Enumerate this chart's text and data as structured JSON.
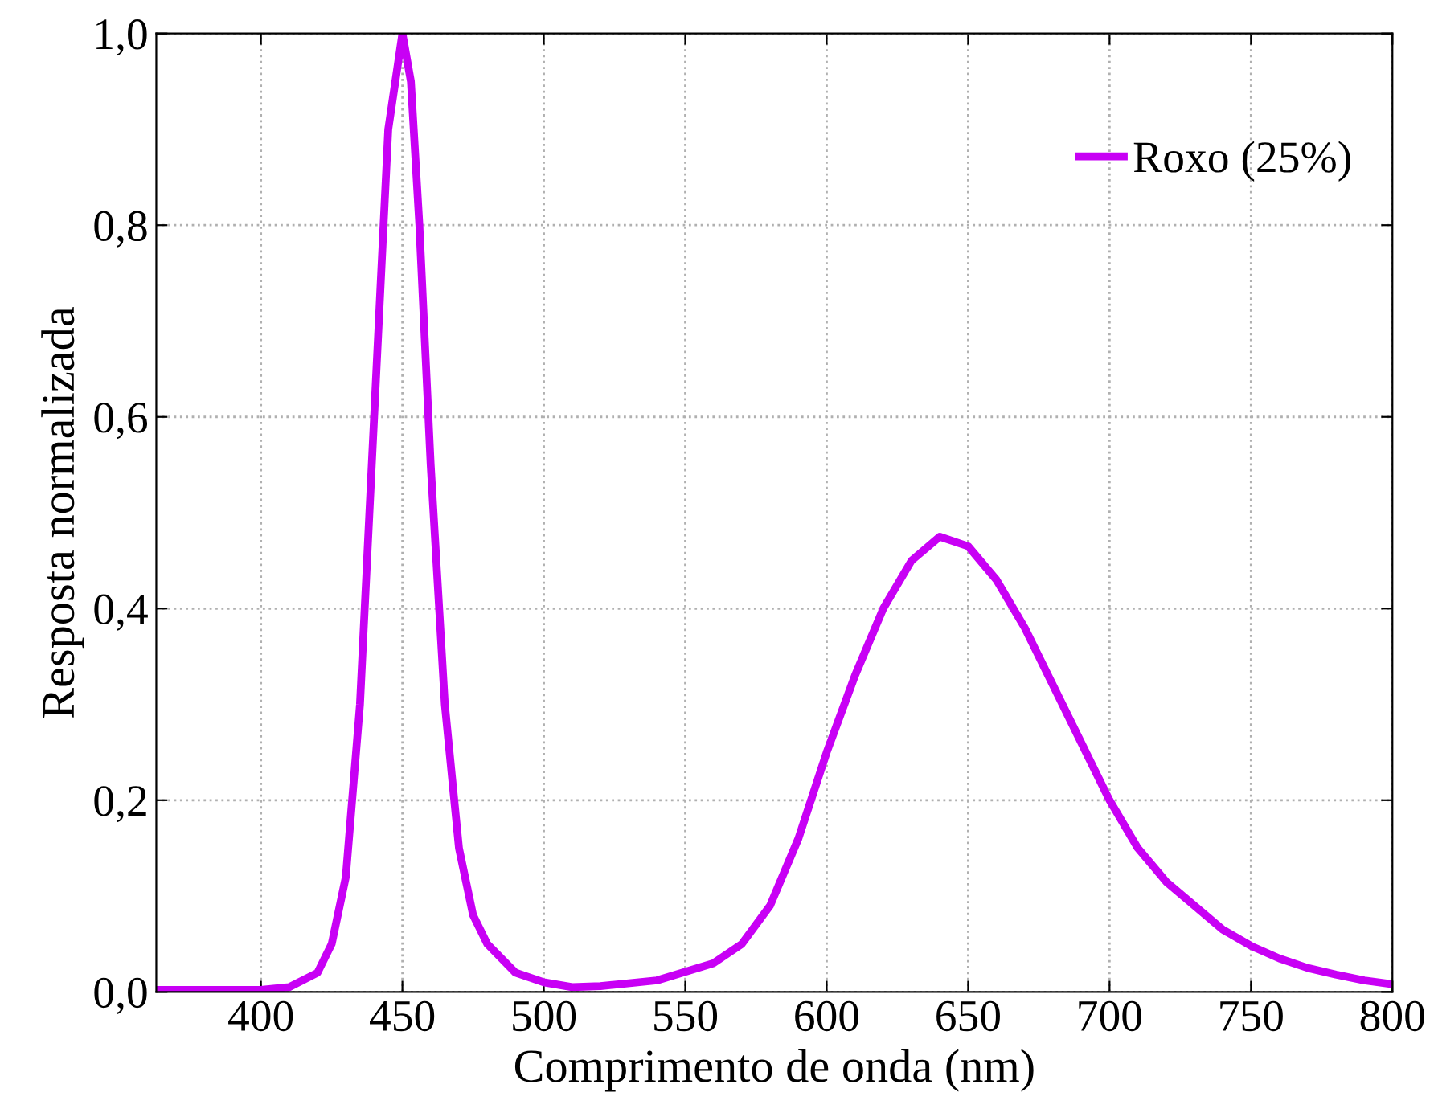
{
  "chart_data": {
    "type": "line",
    "xlabel": "Comprimento de onda (nm)",
    "ylabel": "Resposta normalizada",
    "xlim": [
      363,
      800
    ],
    "ylim": [
      0,
      1
    ],
    "xticks": [
      400,
      450,
      500,
      550,
      600,
      650,
      700,
      750,
      800
    ],
    "yticks": [
      {
        "value": 0,
        "label": "0,0"
      },
      {
        "value": 0.2,
        "label": "0,2"
      },
      {
        "value": 0.4,
        "label": "0,4"
      },
      {
        "value": 0.6,
        "label": "0,6"
      },
      {
        "value": 0.8,
        "label": "0,8"
      },
      {
        "value": 1,
        "label": "1,0"
      }
    ],
    "grid": true,
    "legend": "top right",
    "line_style": "solid",
    "marker": "none",
    "x": [
      363,
      400,
      410,
      420,
      425,
      430,
      435,
      440,
      445,
      450,
      453,
      456,
      460,
      465,
      470,
      475,
      480,
      490,
      500,
      510,
      520,
      540,
      560,
      570,
      580,
      590,
      600,
      610,
      620,
      630,
      640,
      650,
      660,
      670,
      680,
      690,
      700,
      710,
      720,
      730,
      740,
      750,
      760,
      770,
      780,
      790,
      800
    ],
    "series": [
      {
        "name": "Roxo (25%)",
        "color": "#c800f5",
        "values": [
          0.002,
          0.002,
          0.005,
          0.02,
          0.05,
          0.12,
          0.3,
          0.6,
          0.9,
          1.0,
          0.95,
          0.8,
          0.55,
          0.3,
          0.15,
          0.08,
          0.05,
          0.02,
          0.01,
          0.005,
          0.006,
          0.012,
          0.03,
          0.05,
          0.09,
          0.16,
          0.25,
          0.33,
          0.4,
          0.45,
          0.475,
          0.465,
          0.43,
          0.38,
          0.32,
          0.26,
          0.2,
          0.15,
          0.115,
          0.09,
          0.065,
          0.048,
          0.035,
          0.025,
          0.018,
          0.012,
          0.008
        ]
      }
    ]
  }
}
